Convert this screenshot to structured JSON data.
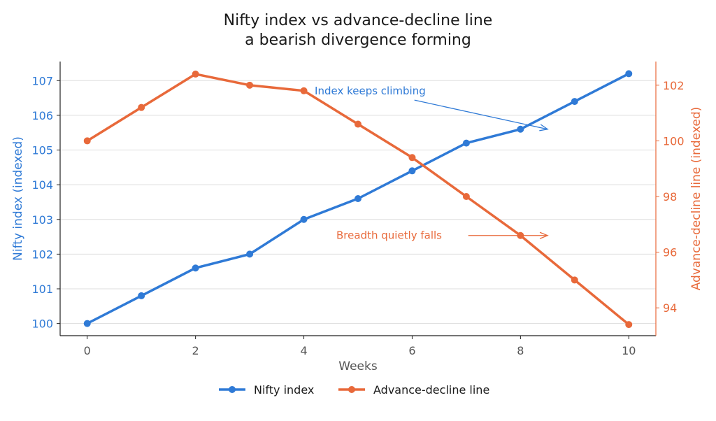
{
  "chart_data": {
    "type": "line",
    "title_line1": "Nifty index vs advance-decline line",
    "title_line2": "a bearish divergence forming",
    "xlabel": "Weeks",
    "ylabel_left": "Nifty index (indexed)",
    "ylabel_right": "Advance-decline line (indexed)",
    "x": [
      0,
      1,
      2,
      3,
      4,
      5,
      6,
      7,
      8,
      9,
      10
    ],
    "x_ticks": [
      0,
      2,
      4,
      6,
      8,
      10
    ],
    "xlim": [
      -0.5,
      10.5
    ],
    "ylim_left": [
      99.65,
      107.55
    ],
    "yticks_left": [
      100,
      101,
      102,
      103,
      104,
      105,
      106,
      107
    ],
    "ylim_right": [
      93.0,
      102.85
    ],
    "yticks_right": [
      94,
      96,
      98,
      100,
      102
    ],
    "grid": true,
    "legend_position": "bottom-center",
    "series": [
      {
        "name": "Nifty index",
        "axis": "left",
        "color": "#2f7ad6",
        "values": [
          100,
          100.8,
          101.6,
          102.0,
          103.0,
          103.6,
          104.4,
          105.2,
          105.6,
          106.4,
          107.2
        ]
      },
      {
        "name": "Advance-decline line",
        "axis": "right",
        "color": "#e8693a",
        "values": [
          100.0,
          101.2,
          102.4,
          102.0,
          101.8,
          100.6,
          99.4,
          98.0,
          96.6,
          95.0,
          93.4
        ]
      }
    ],
    "annotations": [
      {
        "text": "Index keeps climbing",
        "color": "#2f7ad6",
        "axis": "left",
        "text_x": 4.2,
        "text_y": 106.7,
        "arrow_x": 8.5,
        "arrow_y": 105.6
      },
      {
        "text": "Breadth quietly falls",
        "color": "#e8693a",
        "axis": "right",
        "text_x": 4.6,
        "text_y": 96.6,
        "arrow_x": 8.5,
        "arrow_y": 96.6
      }
    ]
  }
}
